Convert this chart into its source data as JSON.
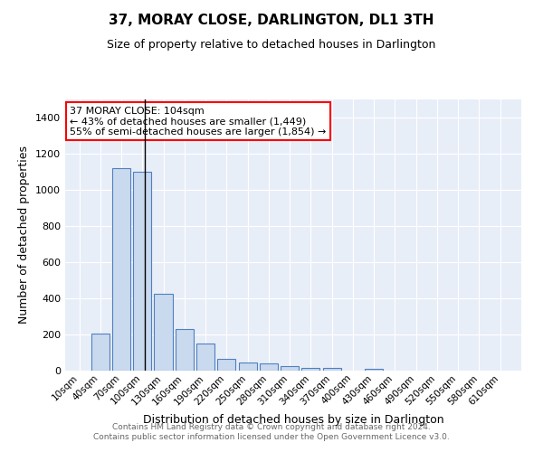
{
  "title": "37, MORAY CLOSE, DARLINGTON, DL1 3TH",
  "subtitle": "Size of property relative to detached houses in Darlington",
  "xlabel": "Distribution of detached houses by size in Darlington",
  "ylabel": "Number of detached properties",
  "footer_line1": "Contains HM Land Registry data © Crown copyright and database right 2024.",
  "footer_line2": "Contains public sector information licensed under the Open Government Licence v3.0.",
  "annotation_line1": "37 MORAY CLOSE: 104sqm",
  "annotation_line2": "← 43% of detached houses are smaller (1,449)",
  "annotation_line3": "55% of semi-detached houses are larger (1,854) →",
  "property_size_sqm": 104,
  "bar_color": "#c9d9ee",
  "bar_edge_color": "#5080c0",
  "bg_color": "#e8eef8",
  "grid_color": "#ffffff",
  "categories": [
    10,
    40,
    70,
    100,
    130,
    160,
    190,
    220,
    250,
    280,
    310,
    340,
    370,
    400,
    430,
    460,
    490,
    520,
    550,
    580,
    610
  ],
  "values": [
    0,
    207,
    1120,
    1100,
    427,
    232,
    148,
    63,
    46,
    38,
    24,
    15,
    15,
    0,
    12,
    0,
    0,
    0,
    0,
    0,
    0
  ],
  "ylim": [
    0,
    1500
  ],
  "yticks": [
    0,
    200,
    400,
    600,
    800,
    1000,
    1200,
    1400
  ],
  "vline_x": 104,
  "title_fontsize": 11,
  "subtitle_fontsize": 9,
  "ylabel_fontsize": 9,
  "xlabel_fontsize": 9,
  "tick_fontsize": 8,
  "footer_fontsize": 6.5,
  "annot_fontsize": 8
}
